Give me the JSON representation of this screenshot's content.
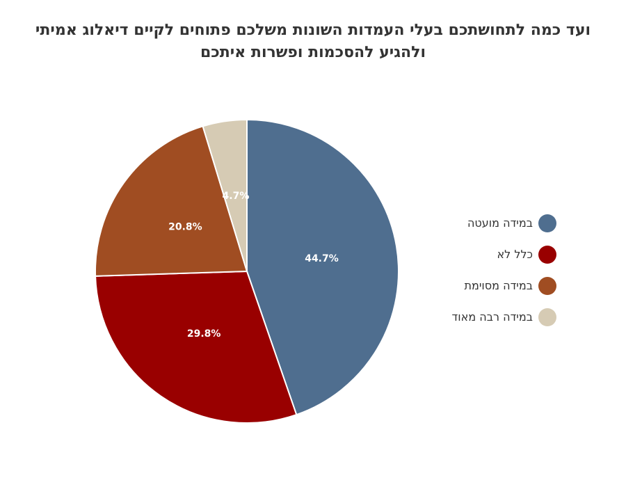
{
  "title": {
    "line1": "ועד כמה לתחושתכם בעלי העמדות השונות משלכם פתוחים לקיים דיאלוג אמיתי",
    "line2": "ולהגיע להסכמות ופשרות איתכם"
  },
  "chart_data": {
    "type": "pie",
    "title": "ועד כמה לתחושתכם בעלי העמדות השונות משלכם פתוחים לקיים דיאלוג אמיתי ולהגיע להסכמות ופשרות איתכם",
    "slices": [
      {
        "label": "במידה מועטה",
        "value": 44.7,
        "value_label": "44.7%",
        "color": "#4f6e8f"
      },
      {
        "label": "כלל לא",
        "value": 29.8,
        "value_label": "29.8%",
        "color": "#990000"
      },
      {
        "label": "במידה מסוימת",
        "value": 20.8,
        "value_label": "20.8%",
        "color": "#a04d22"
      },
      {
        "label": "במידה רבה מאוד",
        "value": 4.7,
        "value_label": "4.7%",
        "color": "#d6cbb4"
      }
    ],
    "legend_position": "right",
    "start_angle": "top",
    "direction": "clockwise"
  }
}
